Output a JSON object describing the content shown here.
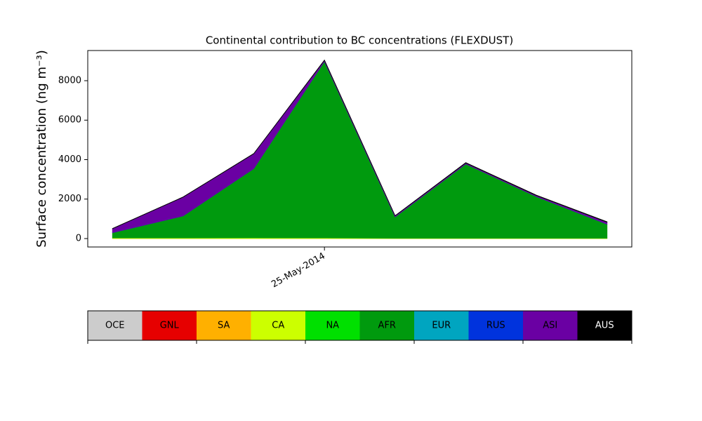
{
  "chart_data": {
    "type": "stacked-area",
    "title": "Continental contribution to BC concentrations (FLEXDUST)",
    "y_label": "Surface concentration (ng m⁻³)",
    "categories": [
      null,
      null,
      null,
      "25-May-2014",
      null,
      null,
      null,
      null
    ],
    "ylim": [
      -427,
      9529
    ],
    "yticks": [
      0,
      2000,
      4000,
      6000,
      8000
    ],
    "series": [
      {
        "name": "OCE",
        "color": "#cccccc",
        "values": [
          0,
          0,
          0,
          0,
          0,
          0,
          0,
          0
        ]
      },
      {
        "name": "GNL",
        "color": "#e60000",
        "values": [
          0,
          0,
          0,
          0,
          0,
          0,
          0,
          0
        ]
      },
      {
        "name": "SA",
        "color": "#ffb000",
        "values": [
          0,
          0,
          0,
          0,
          0,
          0,
          0,
          0
        ]
      },
      {
        "name": "CA",
        "color": "#ccff00",
        "values": [
          30,
          30,
          40,
          30,
          20,
          20,
          20,
          20
        ]
      },
      {
        "name": "NA",
        "color": "#00e000",
        "values": [
          0,
          0,
          0,
          0,
          0,
          0,
          0,
          0
        ]
      },
      {
        "name": "AFR",
        "color": "#009a0e",
        "values": [
          270,
          1120,
          3510,
          8950,
          1080,
          3760,
          2110,
          710
        ]
      },
      {
        "name": "EUR",
        "color": "#00a5c0",
        "values": [
          0,
          0,
          0,
          0,
          0,
          0,
          0,
          0
        ]
      },
      {
        "name": "RUS",
        "color": "#0033dd",
        "values": [
          0,
          0,
          0,
          0,
          0,
          0,
          0,
          0
        ]
      },
      {
        "name": "ASI",
        "color": "#6a00a3",
        "values": [
          200,
          950,
          750,
          50,
          50,
          50,
          50,
          100
        ]
      },
      {
        "name": "AUS",
        "color": "#000000",
        "values": [
          10,
          10,
          10,
          20,
          10,
          20,
          20,
          20
        ]
      }
    ]
  }
}
